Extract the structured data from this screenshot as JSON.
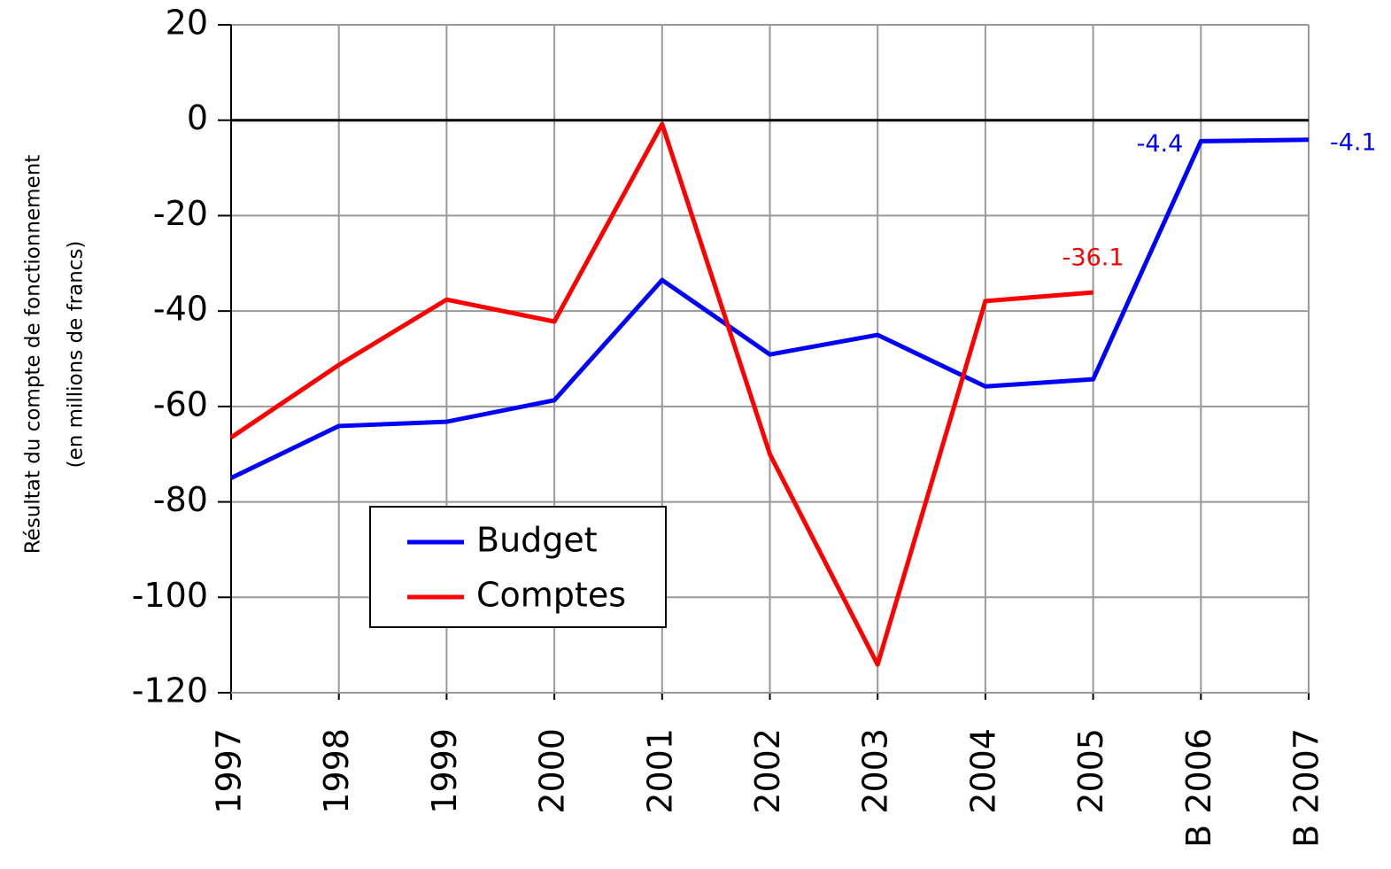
{
  "chart_data": {
    "type": "line",
    "y_label": [
      "Résultat du compte de fonctionnement",
      "(en millions de francs)"
    ],
    "categories": [
      "1997",
      "1998",
      "1999",
      "2000",
      "2001",
      "2002",
      "2003",
      "2004",
      "2005",
      "B 2006",
      "B 2007"
    ],
    "series": [
      {
        "name": "Budget",
        "color": "#0000ff",
        "values": [
          -75,
          -64.1,
          -63.2,
          -58.7,
          -33.5,
          -49.1,
          -45,
          -55.8,
          -54.3,
          -4.4,
          -4.1
        ],
        "data_labels": [
          9,
          10
        ]
      },
      {
        "name": "Comptes",
        "color": "#ff0000",
        "values": [
          -66.5,
          -51.3,
          -37.6,
          -42.2,
          -0.8,
          -70,
          -114.1,
          -37.9,
          -36.1,
          null,
          null
        ],
        "data_labels": [
          8
        ]
      }
    ],
    "ylim": [
      -120,
      20
    ],
    "yticks": [
      -120,
      -100,
      -80,
      -60,
      -40,
      -20,
      0,
      20
    ],
    "grid": true
  }
}
